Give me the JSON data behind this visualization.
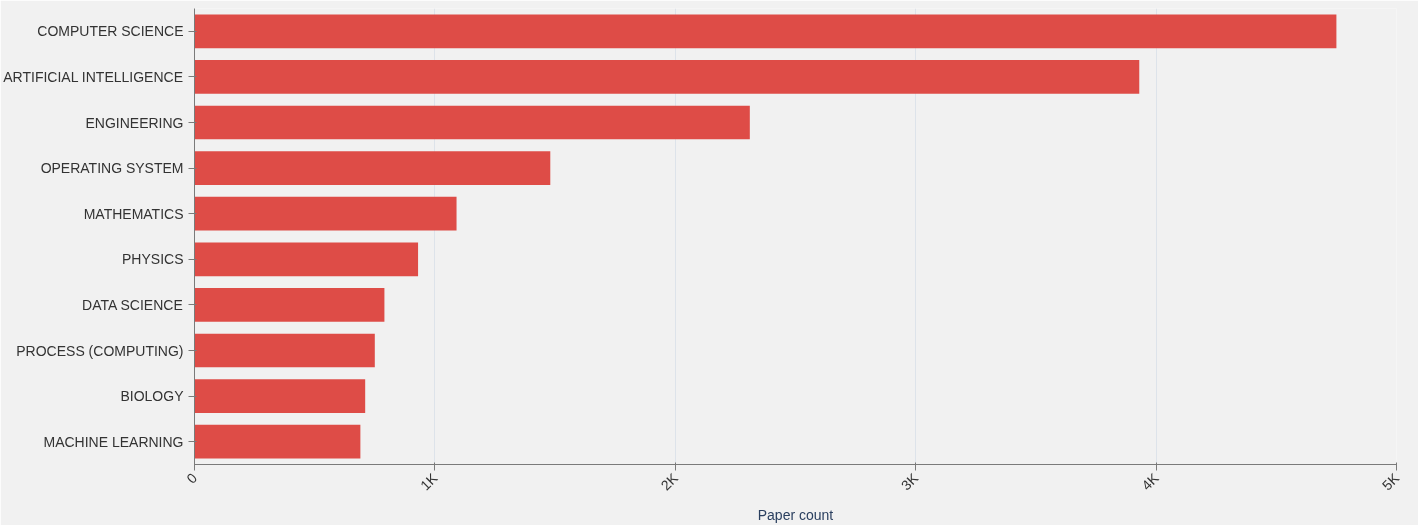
{
  "chart_data": {
    "type": "bar",
    "orientation": "horizontal",
    "xlabel": "Paper count",
    "categories": [
      "COMPUTER SCIENCE",
      "ARTIFICIAL INTELLIGENCE",
      "ENGINEERING",
      "OPERATING SYSTEM",
      "MATHEMATICS",
      "PHYSICS",
      "DATA SCIENCE",
      "PROCESS (COMPUTING)",
      "BIOLOGY",
      "MACHINE LEARNING"
    ],
    "values": [
      4750,
      3930,
      2310,
      1480,
      1090,
      930,
      790,
      750,
      710,
      690
    ],
    "color": "#de4c47",
    "xlim": [
      0,
      5000
    ],
    "xticks": [
      0,
      {
        "value": 1000,
        "label": "1K"
      },
      {
        "value": 2000,
        "label": "2K"
      },
      {
        "value": 3000,
        "label": "3K"
      },
      {
        "value": 4000,
        "label": "4K"
      },
      {
        "value": 5000,
        "label": "5K"
      }
    ],
    "grid": "x"
  }
}
